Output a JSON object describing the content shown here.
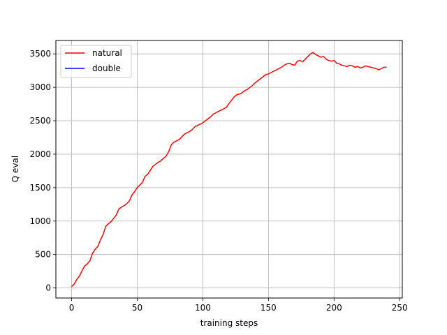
{
  "chart_data": {
    "type": "line",
    "xlabel": "training steps",
    "ylabel": "Q eval",
    "xlim": [
      -12,
      252
    ],
    "ylim": [
      -150,
      3700
    ],
    "xticks": [
      0,
      50,
      100,
      150,
      200,
      250
    ],
    "yticks": [
      0,
      500,
      1000,
      1500,
      2000,
      2500,
      3000,
      3500
    ],
    "grid": true,
    "legend_position": "top-left",
    "series": [
      {
        "name": "natural",
        "color": "#ff0000",
        "x": [
          0,
          2,
          4,
          6,
          8,
          10,
          12,
          14,
          16,
          18,
          20,
          22,
          24,
          26,
          28,
          30,
          32,
          34,
          36,
          38,
          40,
          42,
          44,
          46,
          48,
          50,
          52,
          54,
          56,
          58,
          60,
          62,
          64,
          66,
          68,
          70,
          72,
          74,
          76,
          78,
          80,
          82,
          84,
          86,
          88,
          90,
          92,
          94,
          96,
          98,
          100,
          102,
          104,
          106,
          108,
          110,
          112,
          114,
          116,
          118,
          120,
          122,
          124,
          126,
          128,
          130,
          132,
          134,
          136,
          138,
          140,
          142,
          144,
          146,
          148,
          150,
          152,
          154,
          156,
          158,
          160,
          162,
          164,
          166,
          168,
          170,
          172,
          174,
          176,
          178,
          180,
          182,
          184,
          186,
          188,
          190,
          192,
          194,
          196,
          198,
          200,
          202,
          204,
          206,
          208,
          210,
          212,
          214,
          216,
          218,
          220,
          222,
          224,
          226,
          228,
          230,
          232,
          234,
          236,
          238,
          240
        ],
        "y": [
          20,
          60,
          130,
          180,
          260,
          330,
          360,
          410,
          520,
          580,
          620,
          720,
          800,
          920,
          960,
          990,
          1040,
          1090,
          1180,
          1210,
          1230,
          1260,
          1300,
          1390,
          1440,
          1500,
          1540,
          1580,
          1670,
          1700,
          1760,
          1820,
          1850,
          1880,
          1900,
          1940,
          1970,
          2040,
          2140,
          2180,
          2200,
          2220,
          2260,
          2300,
          2320,
          2340,
          2370,
          2410,
          2430,
          2450,
          2470,
          2500,
          2530,
          2560,
          2600,
          2620,
          2640,
          2660,
          2680,
          2700,
          2760,
          2810,
          2860,
          2890,
          2900,
          2920,
          2950,
          2970,
          3000,
          3030,
          3070,
          3100,
          3130,
          3160,
          3190,
          3200,
          3220,
          3240,
          3260,
          3280,
          3300,
          3330,
          3350,
          3360,
          3340,
          3330,
          3390,
          3400,
          3380,
          3420,
          3460,
          3500,
          3520,
          3490,
          3470,
          3450,
          3460,
          3420,
          3400,
          3390,
          3400,
          3360,
          3350,
          3330,
          3320,
          3310,
          3330,
          3320,
          3300,
          3310,
          3290,
          3300,
          3320,
          3310,
          3300,
          3290,
          3280,
          3260,
          3280,
          3300,
          3300
        ]
      },
      {
        "name": "double",
        "color": "#0000ff",
        "x": [],
        "y": []
      }
    ]
  }
}
